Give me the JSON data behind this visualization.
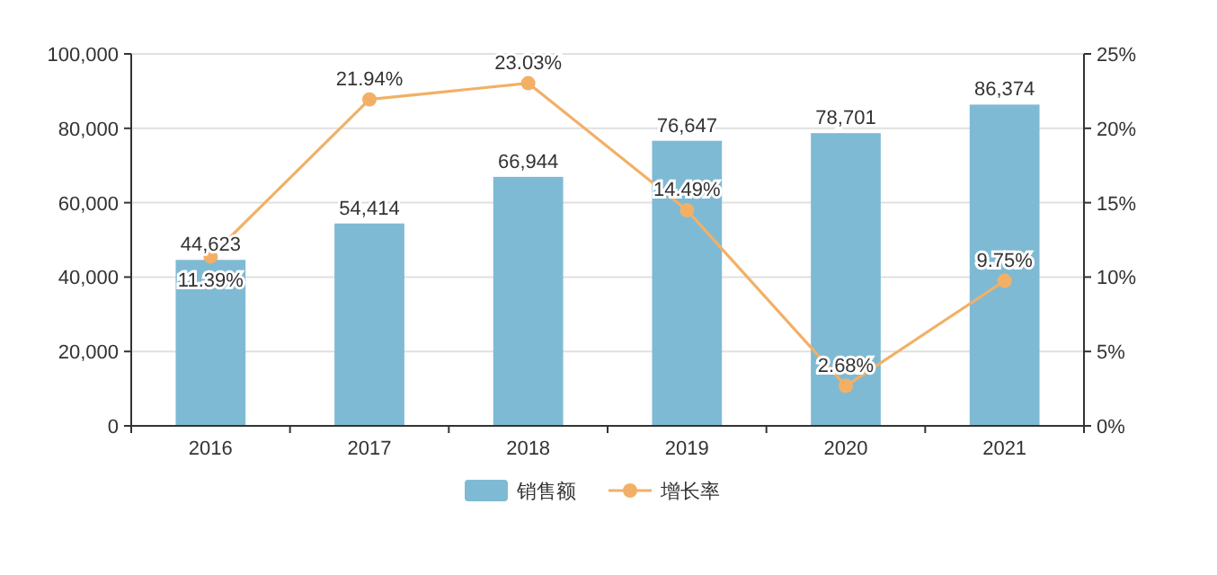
{
  "chart_data": {
    "type": "bar",
    "categories": [
      "2016",
      "2017",
      "2018",
      "2019",
      "2020",
      "2021"
    ],
    "series": [
      {
        "name": "销售额",
        "color": "#7fbad4",
        "values": [
          44623,
          54414,
          66944,
          76647,
          78701,
          86374
        ],
        "value_labels": [
          "44,623",
          "54,414",
          "66,944",
          "76,647",
          "78,701",
          "86,374"
        ]
      },
      {
        "name": "增长率",
        "type": "line",
        "axis": "y2",
        "color": "#f2b066",
        "marker": "circle",
        "values": [
          11.39,
          21.94,
          23.03,
          14.49,
          2.68,
          9.75
        ],
        "value_labels": [
          "11.39%",
          "21.94%",
          "23.03%",
          "14.49%",
          "2.68%",
          "9.75%"
        ]
      }
    ],
    "ylim": [
      0,
      100000
    ],
    "yticks": [
      {
        "value": 0,
        "label": "0"
      },
      {
        "value": 20000,
        "label": "20,000"
      },
      {
        "value": 40000,
        "label": "40,000"
      },
      {
        "value": 60000,
        "label": "60,000"
      },
      {
        "value": 80000,
        "label": "80,000"
      },
      {
        "value": 100000,
        "label": "100,000"
      }
    ],
    "y2lim": [
      0,
      25
    ],
    "y2ticks": [
      {
        "value": 0,
        "label": "0%"
      },
      {
        "value": 5,
        "label": "5%"
      },
      {
        "value": 10,
        "label": "10%"
      },
      {
        "value": 15,
        "label": "15%"
      },
      {
        "value": 20,
        "label": "20%"
      },
      {
        "value": 25,
        "label": "25%"
      }
    ],
    "grid": "y",
    "legend": "bottom"
  }
}
